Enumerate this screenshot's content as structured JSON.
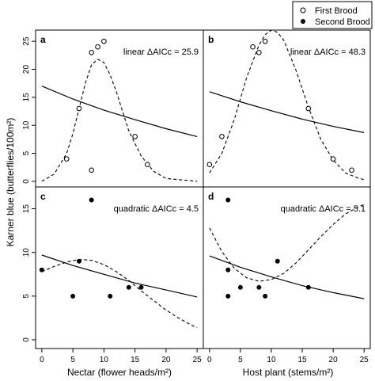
{
  "figure": {
    "ylabel": "Karner blue (butterflies/100m²)",
    "legend": {
      "position": "top-right",
      "entries": [
        {
          "label": "First Brood",
          "marker": "open-circle"
        },
        {
          "label": "Second Brood",
          "marker": "filled-circle"
        }
      ]
    }
  },
  "chart_data": [
    {
      "panel": "a",
      "type": "scatter",
      "annotation": "linear ΔAICc = 25.9",
      "xlabel": "",
      "ylabel": "Karner blue (butterflies/100m²)",
      "xlim": [
        -1,
        26
      ],
      "ylim": [
        -1,
        27
      ],
      "xticks": [
        0,
        5,
        10,
        15,
        20,
        25
      ],
      "yticks": [
        0,
        5,
        10,
        15,
        20,
        25
      ],
      "grid": false,
      "points": [
        {
          "x": 4,
          "y": 4,
          "brood": "First Brood"
        },
        {
          "x": 6,
          "y": 13,
          "brood": "First Brood"
        },
        {
          "x": 8,
          "y": 23,
          "brood": "First Brood"
        },
        {
          "x": 8,
          "y": 2,
          "brood": "First Brood"
        },
        {
          "x": 9,
          "y": 24,
          "brood": "First Brood"
        },
        {
          "x": 10,
          "y": 25,
          "brood": "First Brood"
        },
        {
          "x": 15,
          "y": 8,
          "brood": "First Brood"
        },
        {
          "x": 17,
          "y": 3,
          "brood": "First Brood"
        }
      ],
      "fits": [
        {
          "style": "solid",
          "x": [
            0,
            5,
            10,
            15,
            20,
            25
          ],
          "y": [
            17,
            14.7,
            12.7,
            11,
            9.4,
            8
          ]
        },
        {
          "style": "dashed",
          "x": [
            0,
            2,
            4,
            5,
            6,
            7,
            8,
            9,
            10,
            11,
            12,
            13,
            14,
            16,
            18,
            20,
            25
          ],
          "y": [
            0,
            1.3,
            5,
            8.5,
            13,
            17.5,
            20.8,
            21.8,
            21.2,
            19,
            16,
            12.5,
            9,
            4.5,
            1.8,
            0.5,
            0
          ]
        }
      ]
    },
    {
      "panel": "b",
      "type": "scatter",
      "annotation": "linear ΔAICc = 48.3",
      "xlabel": "",
      "ylabel": "",
      "xlim": [
        -1,
        26
      ],
      "ylim": [
        -1,
        27
      ],
      "xticks": [
        0,
        5,
        10,
        15,
        20,
        25
      ],
      "yticks": [
        0,
        5,
        10,
        15,
        20,
        25
      ],
      "grid": false,
      "points": [
        {
          "x": 0,
          "y": 3,
          "brood": "First Brood"
        },
        {
          "x": 2,
          "y": 8,
          "brood": "First Brood"
        },
        {
          "x": 7,
          "y": 24,
          "brood": "First Brood"
        },
        {
          "x": 8,
          "y": 23,
          "brood": "First Brood"
        },
        {
          "x": 9,
          "y": 25,
          "brood": "First Brood"
        },
        {
          "x": 16,
          "y": 13,
          "brood": "First Brood"
        },
        {
          "x": 20,
          "y": 4,
          "brood": "First Brood"
        },
        {
          "x": 23,
          "y": 2,
          "brood": "First Brood"
        }
      ],
      "fits": [
        {
          "style": "solid",
          "x": [
            0,
            5,
            10,
            15,
            20,
            25
          ],
          "y": [
            16,
            14.2,
            12.6,
            11.1,
            9.8,
            8.7
          ]
        },
        {
          "style": "dashed",
          "x": [
            0,
            2,
            4,
            6,
            8,
            9,
            10,
            11,
            12,
            14,
            16,
            18,
            20,
            22,
            24,
            25
          ],
          "y": [
            1.5,
            5,
            11,
            18.5,
            24.3,
            26.2,
            27,
            26.6,
            25.2,
            19.8,
            13.2,
            7.5,
            3.8,
            1.5,
            0.6,
            0.3
          ]
        }
      ]
    },
    {
      "panel": "c",
      "type": "scatter",
      "annotation": "quadratic ΔAICc = 4.5",
      "xlabel": "Nectar (flower heads/m²)",
      "ylabel": "",
      "xlim": [
        -1,
        26
      ],
      "ylim": [
        -1,
        17.5
      ],
      "xticks": [
        0,
        5,
        10,
        15,
        20,
        25
      ],
      "yticks": [
        0,
        5,
        10,
        15
      ],
      "grid": false,
      "points": [
        {
          "x": 0,
          "y": 8,
          "brood": "Second Brood"
        },
        {
          "x": 5,
          "y": 5,
          "brood": "Second Brood"
        },
        {
          "x": 6,
          "y": 9,
          "brood": "Second Brood"
        },
        {
          "x": 8,
          "y": 16,
          "brood": "Second Brood"
        },
        {
          "x": 11,
          "y": 5,
          "brood": "Second Brood"
        },
        {
          "x": 14,
          "y": 6,
          "brood": "Second Brood"
        },
        {
          "x": 16,
          "y": 6,
          "brood": "Second Brood"
        }
      ],
      "fits": [
        {
          "style": "solid",
          "x": [
            0,
            5,
            10,
            15,
            20,
            25
          ],
          "y": [
            9.7,
            8.5,
            7.5,
            6.5,
            5.7,
            4.9
          ]
        },
        {
          "style": "dashed",
          "x": [
            0,
            2,
            4,
            6,
            8,
            10,
            12,
            14,
            16,
            18,
            20,
            22,
            24,
            25
          ],
          "y": [
            7.8,
            8.4,
            8.9,
            9.2,
            9.1,
            8.6,
            7.8,
            6.8,
            5.6,
            4.5,
            3.4,
            2.5,
            1.7,
            1.4
          ]
        }
      ]
    },
    {
      "panel": "d",
      "type": "scatter",
      "annotation": "quadratic ΔAICc = 5.1",
      "xlabel": "Host plant (stems/m²)",
      "ylabel": "",
      "xlim": [
        -1,
        26
      ],
      "ylim": [
        -1,
        17.5
      ],
      "xticks": [
        0,
        5,
        10,
        15,
        20,
        25
      ],
      "yticks": [
        0,
        5,
        10,
        15
      ],
      "grid": false,
      "points": [
        {
          "x": 3,
          "y": 16,
          "brood": "Second Brood"
        },
        {
          "x": 3,
          "y": 8,
          "brood": "Second Brood"
        },
        {
          "x": 3,
          "y": 5,
          "brood": "Second Brood"
        },
        {
          "x": 5,
          "y": 6,
          "brood": "Second Brood"
        },
        {
          "x": 8,
          "y": 6,
          "brood": "Second Brood"
        },
        {
          "x": 9,
          "y": 5,
          "brood": "Second Brood"
        },
        {
          "x": 11,
          "y": 9,
          "brood": "Second Brood"
        },
        {
          "x": 16,
          "y": 6,
          "brood": "Second Brood"
        }
      ],
      "fits": [
        {
          "style": "solid",
          "x": [
            0,
            5,
            10,
            15,
            20,
            25
          ],
          "y": [
            9.6,
            8.3,
            7.2,
            6.2,
            5.4,
            4.7
          ]
        },
        {
          "style": "dashed",
          "x": [
            0,
            2,
            4,
            6,
            8,
            10,
            12,
            14,
            16,
            18,
            20,
            22,
            24,
            25
          ],
          "y": [
            12.8,
            10.1,
            8.2,
            7.1,
            6.7,
            6.9,
            7.6,
            8.8,
            10.3,
            11.8,
            13.2,
            14.4,
            15.2,
            15.5
          ]
        }
      ]
    }
  ]
}
